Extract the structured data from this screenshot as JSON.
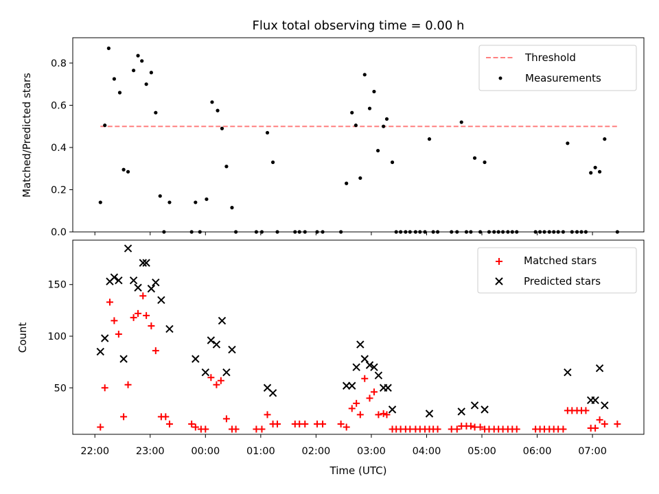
{
  "chart_data": [
    {
      "type": "scatter",
      "title": "Flux total observing time = 0.00 h",
      "xlabel": "",
      "ylabel": "Matched/Predicted stars",
      "xlim": [
        21.6,
        31.93
      ],
      "ylim": [
        0,
        0.92
      ],
      "yticks": [
        0.0,
        0.2,
        0.4,
        0.6,
        0.8
      ],
      "ytick_labels": [
        "0.0",
        "0.2",
        "0.4",
        "0.6",
        "0.8"
      ],
      "legend_position": "top-right",
      "threshold": {
        "name": "Threshold",
        "value": 0.5,
        "x": [
          22.1,
          31.45
        ],
        "color": "#ff7f7f"
      },
      "series": [
        {
          "name": "Measurements",
          "color": "#000000",
          "points": [
            [
              22.1,
              0.14
            ],
            [
              22.18,
              0.505
            ],
            [
              22.25,
              0.87
            ],
            [
              22.35,
              0.725
            ],
            [
              22.45,
              0.66
            ],
            [
              22.52,
              0.295
            ],
            [
              22.6,
              0.285
            ],
            [
              22.7,
              0.765
            ],
            [
              22.78,
              0.835
            ],
            [
              22.85,
              0.81
            ],
            [
              22.93,
              0.7
            ],
            [
              23.02,
              0.755
            ],
            [
              23.1,
              0.565
            ],
            [
              23.18,
              0.17
            ],
            [
              23.25,
              0.0
            ],
            [
              23.35,
              0.14
            ],
            [
              23.75,
              0.0
            ],
            [
              23.82,
              0.14
            ],
            [
              23.9,
              0.0
            ],
            [
              24.02,
              0.155
            ],
            [
              24.12,
              0.615
            ],
            [
              24.22,
              0.575
            ],
            [
              24.3,
              0.49
            ],
            [
              24.38,
              0.31
            ],
            [
              24.48,
              0.115
            ],
            [
              24.55,
              0.0
            ],
            [
              24.92,
              0.0
            ],
            [
              25.02,
              0.0
            ],
            [
              25.12,
              0.47
            ],
            [
              25.22,
              0.33
            ],
            [
              25.3,
              0.0
            ],
            [
              25.62,
              0.0
            ],
            [
              25.7,
              0.0
            ],
            [
              25.8,
              0.0
            ],
            [
              26.02,
              0.0
            ],
            [
              26.12,
              0.0
            ],
            [
              26.45,
              0.0
            ],
            [
              26.55,
              0.23
            ],
            [
              26.65,
              0.565
            ],
            [
              26.72,
              0.505
            ],
            [
              26.8,
              0.255
            ],
            [
              26.88,
              0.745
            ],
            [
              26.97,
              0.585
            ],
            [
              27.05,
              0.665
            ],
            [
              27.12,
              0.385
            ],
            [
              27.22,
              0.5
            ],
            [
              27.28,
              0.535
            ],
            [
              27.38,
              0.33
            ],
            [
              27.45,
              0.0
            ],
            [
              27.53,
              0.0
            ],
            [
              27.62,
              0.0
            ],
            [
              27.7,
              0.0
            ],
            [
              27.8,
              0.0
            ],
            [
              27.88,
              0.0
            ],
            [
              27.97,
              0.0
            ],
            [
              28.05,
              0.44
            ],
            [
              28.12,
              0.0
            ],
            [
              28.2,
              0.0
            ],
            [
              28.45,
              0.0
            ],
            [
              28.55,
              0.0
            ],
            [
              28.63,
              0.52
            ],
            [
              28.72,
              0.0
            ],
            [
              28.8,
              0.0
            ],
            [
              28.87,
              0.35
            ],
            [
              28.97,
              0.0
            ],
            [
              29.05,
              0.33
            ],
            [
              29.13,
              0.0
            ],
            [
              29.22,
              0.0
            ],
            [
              29.3,
              0.0
            ],
            [
              29.38,
              0.0
            ],
            [
              29.47,
              0.0
            ],
            [
              29.55,
              0.0
            ],
            [
              29.63,
              0.0
            ],
            [
              29.97,
              0.0
            ],
            [
              30.05,
              0.0
            ],
            [
              30.13,
              0.0
            ],
            [
              30.22,
              0.0
            ],
            [
              30.3,
              0.0
            ],
            [
              30.38,
              0.0
            ],
            [
              30.47,
              0.0
            ],
            [
              30.55,
              0.42
            ],
            [
              30.63,
              0.0
            ],
            [
              30.72,
              0.0
            ],
            [
              30.8,
              0.0
            ],
            [
              30.88,
              0.0
            ],
            [
              30.97,
              0.28
            ],
            [
              31.05,
              0.305
            ],
            [
              31.13,
              0.285
            ],
            [
              31.22,
              0.44
            ],
            [
              31.45,
              0.0
            ]
          ]
        }
      ]
    },
    {
      "type": "scatter",
      "title": "",
      "xlabel": "Time (UTC)",
      "ylabel": "Count",
      "xlim": [
        21.6,
        31.93
      ],
      "ylim": [
        5,
        193
      ],
      "xticks": [
        22,
        23,
        24,
        25,
        26,
        27,
        28,
        29,
        30,
        31
      ],
      "xtick_labels": [
        "22:00",
        "23:00",
        "00:00",
        "01:00",
        "02:00",
        "03:00",
        "04:00",
        "05:00",
        "06:00",
        "07:00"
      ],
      "yticks": [
        50,
        100,
        150
      ],
      "ytick_labels": [
        "50",
        "100",
        "150"
      ],
      "legend_position": "top-right",
      "series": [
        {
          "name": "Matched stars",
          "color": "#ff0000",
          "marker": "+",
          "points": [
            [
              22.1,
              12
            ],
            [
              22.18,
              50
            ],
            [
              22.27,
              133
            ],
            [
              22.35,
              115
            ],
            [
              22.43,
              102
            ],
            [
              22.52,
              22
            ],
            [
              22.6,
              53
            ],
            [
              22.7,
              118
            ],
            [
              22.78,
              122
            ],
            [
              22.87,
              139
            ],
            [
              22.93,
              120
            ],
            [
              23.02,
              110
            ],
            [
              23.1,
              86
            ],
            [
              23.2,
              22
            ],
            [
              23.28,
              22
            ],
            [
              23.35,
              15
            ],
            [
              23.75,
              15
            ],
            [
              23.82,
              12
            ],
            [
              23.92,
              10
            ],
            [
              24.0,
              10
            ],
            [
              24.1,
              60
            ],
            [
              24.2,
              53
            ],
            [
              24.28,
              57
            ],
            [
              24.38,
              20
            ],
            [
              24.48,
              10
            ],
            [
              24.55,
              10
            ],
            [
              24.92,
              10
            ],
            [
              25.02,
              10
            ],
            [
              25.12,
              24
            ],
            [
              25.22,
              15
            ],
            [
              25.3,
              15
            ],
            [
              25.62,
              15
            ],
            [
              25.7,
              15
            ],
            [
              25.8,
              15
            ],
            [
              26.02,
              15
            ],
            [
              26.12,
              15
            ],
            [
              26.45,
              15
            ],
            [
              26.55,
              12
            ],
            [
              26.65,
              30
            ],
            [
              26.73,
              35
            ],
            [
              26.8,
              24
            ],
            [
              26.88,
              59
            ],
            [
              26.97,
              40
            ],
            [
              27.05,
              46
            ],
            [
              27.13,
              24
            ],
            [
              27.22,
              25
            ],
            [
              27.28,
              24
            ],
            [
              27.38,
              10
            ],
            [
              27.45,
              10
            ],
            [
              27.53,
              10
            ],
            [
              27.62,
              10
            ],
            [
              27.7,
              10
            ],
            [
              27.8,
              10
            ],
            [
              27.88,
              10
            ],
            [
              27.97,
              10
            ],
            [
              28.05,
              10
            ],
            [
              28.12,
              10
            ],
            [
              28.2,
              10
            ],
            [
              28.45,
              10
            ],
            [
              28.55,
              10
            ],
            [
              28.63,
              13
            ],
            [
              28.72,
              13
            ],
            [
              28.8,
              13
            ],
            [
              28.87,
              12
            ],
            [
              28.97,
              12
            ],
            [
              29.05,
              10
            ],
            [
              29.13,
              10
            ],
            [
              29.22,
              10
            ],
            [
              29.3,
              10
            ],
            [
              29.38,
              10
            ],
            [
              29.47,
              10
            ],
            [
              29.55,
              10
            ],
            [
              29.63,
              10
            ],
            [
              29.97,
              10
            ],
            [
              30.05,
              10
            ],
            [
              30.13,
              10
            ],
            [
              30.22,
              10
            ],
            [
              30.3,
              10
            ],
            [
              30.38,
              10
            ],
            [
              30.47,
              10
            ],
            [
              30.55,
              28
            ],
            [
              30.63,
              28
            ],
            [
              30.72,
              28
            ],
            [
              30.8,
              28
            ],
            [
              30.88,
              28
            ],
            [
              30.97,
              11
            ],
            [
              31.05,
              11
            ],
            [
              31.13,
              19
            ],
            [
              31.22,
              15
            ],
            [
              31.45,
              15
            ]
          ]
        },
        {
          "name": "Predicted stars",
          "color": "#000000",
          "marker": "x",
          "points": [
            [
              22.1,
              85
            ],
            [
              22.18,
              98
            ],
            [
              22.27,
              153
            ],
            [
              22.35,
              157
            ],
            [
              22.43,
              154
            ],
            [
              22.52,
              78
            ],
            [
              22.6,
              185
            ],
            [
              22.7,
              154
            ],
            [
              22.78,
              147
            ],
            [
              22.87,
              171
            ],
            [
              22.93,
              171
            ],
            [
              23.02,
              146
            ],
            [
              23.1,
              152
            ],
            [
              23.2,
              135
            ],
            [
              23.35,
              107
            ],
            [
              23.82,
              78
            ],
            [
              24.0,
              65
            ],
            [
              24.1,
              96
            ],
            [
              24.2,
              92
            ],
            [
              24.3,
              115
            ],
            [
              24.38,
              65
            ],
            [
              24.48,
              87
            ],
            [
              25.12,
              50
            ],
            [
              25.22,
              45
            ],
            [
              26.55,
              52
            ],
            [
              26.65,
              52
            ],
            [
              26.73,
              70
            ],
            [
              26.8,
              92
            ],
            [
              26.88,
              78
            ],
            [
              26.97,
              72
            ],
            [
              27.05,
              70
            ],
            [
              27.13,
              62
            ],
            [
              27.22,
              50
            ],
            [
              27.3,
              50
            ],
            [
              27.38,
              29
            ],
            [
              28.05,
              25
            ],
            [
              28.63,
              27
            ],
            [
              28.87,
              33
            ],
            [
              29.05,
              29
            ],
            [
              30.55,
              65
            ],
            [
              30.97,
              38
            ],
            [
              31.05,
              38
            ],
            [
              31.13,
              69
            ],
            [
              31.22,
              33
            ]
          ]
        }
      ]
    }
  ]
}
